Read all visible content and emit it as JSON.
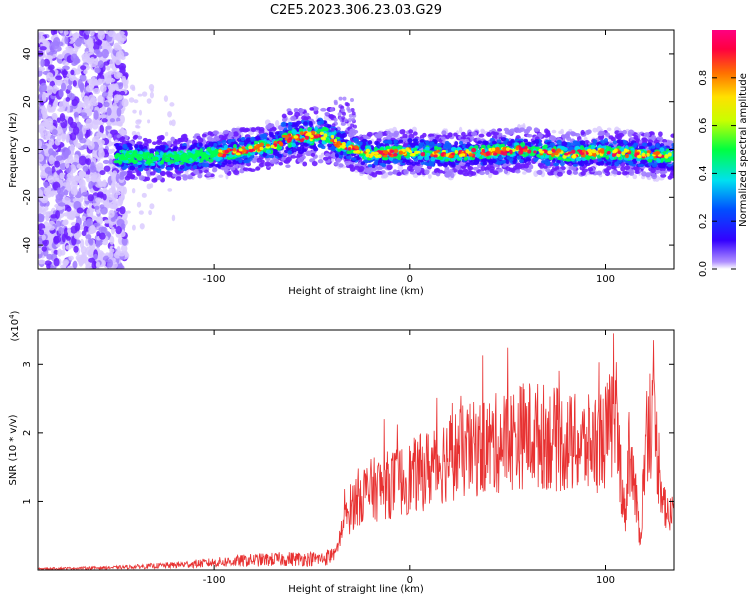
{
  "title": "C2E5.2023.306.23.03.G29",
  "chart_data": [
    {
      "type": "heatmap",
      "xlabel": "Height of straight line (km)",
      "ylabel": "Frequency (Hz)",
      "xlim": [
        -190,
        135
      ],
      "ylim": [
        -50,
        50
      ],
      "xticks": [
        -100,
        0,
        100
      ],
      "yticks": [
        -40,
        -20,
        0,
        20,
        40
      ],
      "colorbar": {
        "label": "Normalized spectral amplitude",
        "range": [
          0,
          1
        ],
        "ticks": [
          0.0,
          0.2,
          0.4,
          0.6,
          0.8
        ]
      },
      "center_line": {
        "x": [
          -145,
          -130,
          -110,
          -90,
          -75,
          -60,
          -45,
          -35,
          -20,
          0,
          20,
          40,
          60,
          80,
          100,
          120,
          135
        ],
        "y": [
          -3,
          -4,
          -3,
          -1,
          1,
          3,
          4,
          2,
          -2,
          -1,
          -2,
          -1,
          0,
          -2,
          -1,
          -2,
          -3
        ]
      }
    },
    {
      "type": "line",
      "xlabel": "Height of straight line (km)",
      "ylabel": "SNR (10 * v/v)",
      "y_multiplier": "(x10",
      "y_multiplier_exp": "4",
      "y_multiplier_close": ")",
      "xlim": [
        -190,
        135
      ],
      "ylim": [
        0,
        3.5
      ],
      "xticks": [
        -100,
        0,
        100
      ],
      "yticks": [
        1,
        2,
        3
      ],
      "series_color": "#e83232",
      "envelope": {
        "x": [
          -190,
          -150,
          -120,
          -100,
          -80,
          -60,
          -45,
          -38,
          -35,
          -30,
          -25,
          -20,
          -10,
          0,
          10,
          20,
          40,
          50,
          60,
          70,
          80,
          90,
          100,
          105,
          108,
          110,
          112,
          115,
          118,
          120,
          122,
          125,
          128,
          130,
          132,
          135
        ],
        "y": [
          0.02,
          0.04,
          0.08,
          0.12,
          0.16,
          0.18,
          0.18,
          0.25,
          0.6,
          1.0,
          1.2,
          1.25,
          1.35,
          1.45,
          1.6,
          1.8,
          1.95,
          2.05,
          2.15,
          2.1,
          2.0,
          1.95,
          2.1,
          2.4,
          1.5,
          0.8,
          2.0,
          1.2,
          0.5,
          1.8,
          2.5,
          2.2,
          1.5,
          1.1,
          0.8,
          1.0
        ]
      }
    }
  ]
}
